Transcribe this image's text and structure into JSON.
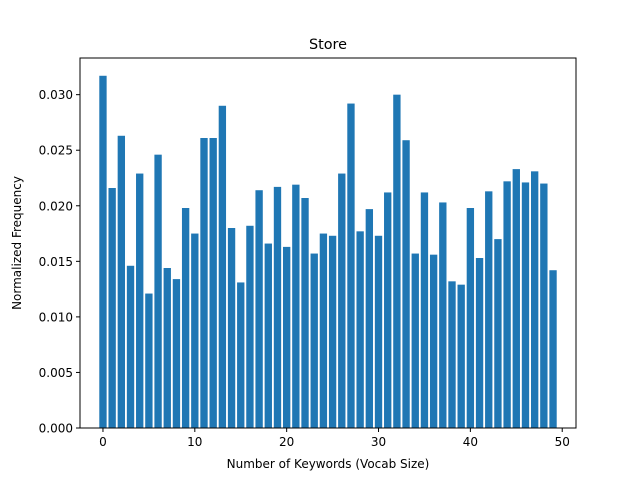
{
  "chart_data": {
    "type": "bar",
    "title": "Store",
    "xlabel": "Number of Keywords (Vocab Size)",
    "ylabel": "Normalized Frequency",
    "x": [
      0,
      1,
      2,
      3,
      4,
      5,
      6,
      7,
      8,
      9,
      10,
      11,
      12,
      13,
      14,
      15,
      16,
      17,
      18,
      19,
      20,
      21,
      22,
      23,
      24,
      25,
      26,
      27,
      28,
      29,
      30,
      31,
      32,
      33,
      34,
      35,
      36,
      37,
      38,
      39,
      40,
      41,
      42,
      43,
      44,
      45,
      46,
      47,
      48,
      49
    ],
    "values": [
      0.0317,
      0.0216,
      0.0263,
      0.0146,
      0.0229,
      0.0121,
      0.0246,
      0.0144,
      0.0134,
      0.0198,
      0.0175,
      0.0261,
      0.0261,
      0.029,
      0.018,
      0.0131,
      0.0182,
      0.0214,
      0.0166,
      0.0217,
      0.0163,
      0.0219,
      0.0207,
      0.0157,
      0.0175,
      0.0173,
      0.0229,
      0.0292,
      0.0177,
      0.0197,
      0.0173,
      0.0212,
      0.03,
      0.0259,
      0.0157,
      0.0212,
      0.0156,
      0.0203,
      0.0132,
      0.0129,
      0.0198,
      0.0153,
      0.0213,
      0.017,
      0.0222,
      0.0233,
      0.0221,
      0.0231,
      0.022,
      0.0142
    ],
    "xlim": [
      -2.5,
      51.5
    ],
    "ylim": [
      0,
      0.0333
    ],
    "xticks": [
      0,
      10,
      20,
      30,
      40,
      50
    ],
    "xtick_labels": [
      "0",
      "10",
      "20",
      "30",
      "40",
      "50"
    ],
    "yticks": [
      0,
      0.005,
      0.01,
      0.015,
      0.02,
      0.025,
      0.03
    ],
    "ytick_labels": [
      "0.000",
      "0.005",
      "0.010",
      "0.015",
      "0.020",
      "0.025",
      "0.030"
    ],
    "bar_color": "#1f77b4",
    "grid": false,
    "legend": "none"
  }
}
